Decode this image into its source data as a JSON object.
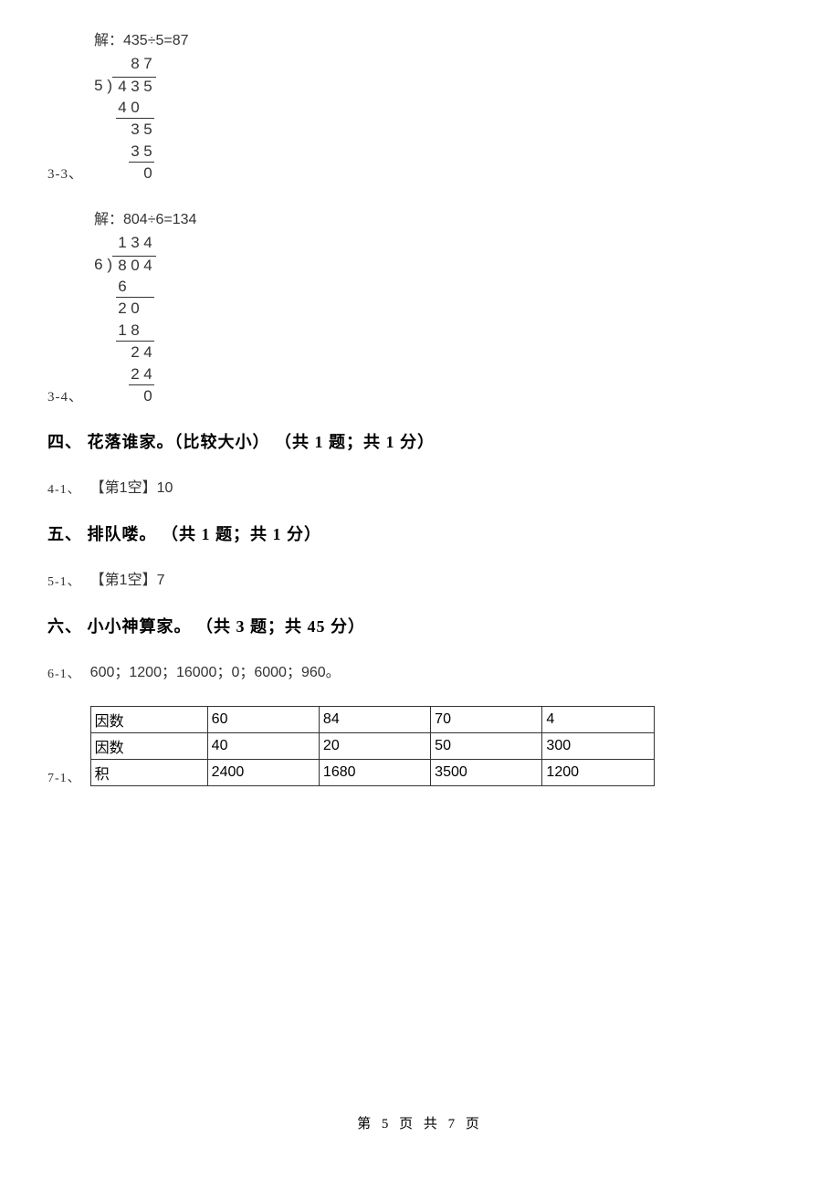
{
  "answers": {
    "q3_3": {
      "label": "3-3、",
      "header": "解：435÷5=87",
      "divisor": "5",
      "dividend": [
        "4",
        "3",
        "5"
      ],
      "quotient_indent": 1,
      "quotient": [
        "8",
        "7"
      ],
      "work": [
        {
          "indent": 0,
          "digits": [
            "4",
            "0"
          ],
          "underline": true
        },
        {
          "indent": 1,
          "digits": [
            "3",
            "5"
          ],
          "underline": false
        },
        {
          "indent": 1,
          "digits": [
            "3",
            "5"
          ],
          "underline": true
        },
        {
          "indent": 2,
          "digits": [
            "0"
          ],
          "underline": false
        }
      ]
    },
    "q3_4": {
      "label": "3-4、",
      "header": "解：804÷6=134",
      "divisor": "6",
      "dividend": [
        "8",
        "0",
        "4"
      ],
      "quotient_indent": 0,
      "quotient": [
        "1",
        "3",
        "4"
      ],
      "work": [
        {
          "indent": 0,
          "digits": [
            "6"
          ],
          "underline": true
        },
        {
          "indent": 0,
          "digits": [
            "2",
            "0"
          ],
          "underline": false
        },
        {
          "indent": 0,
          "digits": [
            "1",
            "8"
          ],
          "underline": true
        },
        {
          "indent": 1,
          "digits": [
            "2",
            "4"
          ],
          "underline": false
        },
        {
          "indent": 1,
          "digits": [
            "2",
            "4"
          ],
          "underline": true
        },
        {
          "indent": 2,
          "digits": [
            "0"
          ],
          "underline": false
        }
      ]
    }
  },
  "sections": {
    "s4": {
      "title": "四、 花落谁家。（比较大小） （共 1 题；共 1 分）"
    },
    "s5": {
      "title": "五、 排队喽。 （共 1 题；共 1 分）"
    },
    "s6": {
      "title": "六、 小小神算家。 （共 3 题；共 45 分）"
    }
  },
  "sub_answers": {
    "q4_1": {
      "label": "4-1、",
      "value": "【第1空】10"
    },
    "q5_1": {
      "label": "5-1、",
      "value": "【第1空】7"
    },
    "q6_1": {
      "label": "6-1、",
      "value": "600；1200；16000；0；6000；960。"
    },
    "q7_1": {
      "label": "7-1、"
    }
  },
  "factor_table": {
    "rows": [
      [
        "因数",
        "60",
        "84",
        "70",
        "4"
      ],
      [
        "因数",
        "40",
        "20",
        "50",
        "300"
      ],
      [
        "积",
        "2400",
        "1680",
        "3500",
        "1200"
      ]
    ],
    "col_count": 5
  },
  "footer": {
    "text_prefix": "第 ",
    "page_current": "5",
    "text_mid": " 页 共 ",
    "page_total": "7",
    "text_suffix": " 页"
  },
  "style": {
    "text_color": "#000000",
    "work_color": "#333333",
    "border_color": "#333333",
    "background": "#ffffff",
    "body_font": "SimSun",
    "math_font": "Microsoft YaHei",
    "heading_fontsize": 18,
    "body_fontsize": 16,
    "digit_width": 14
  }
}
